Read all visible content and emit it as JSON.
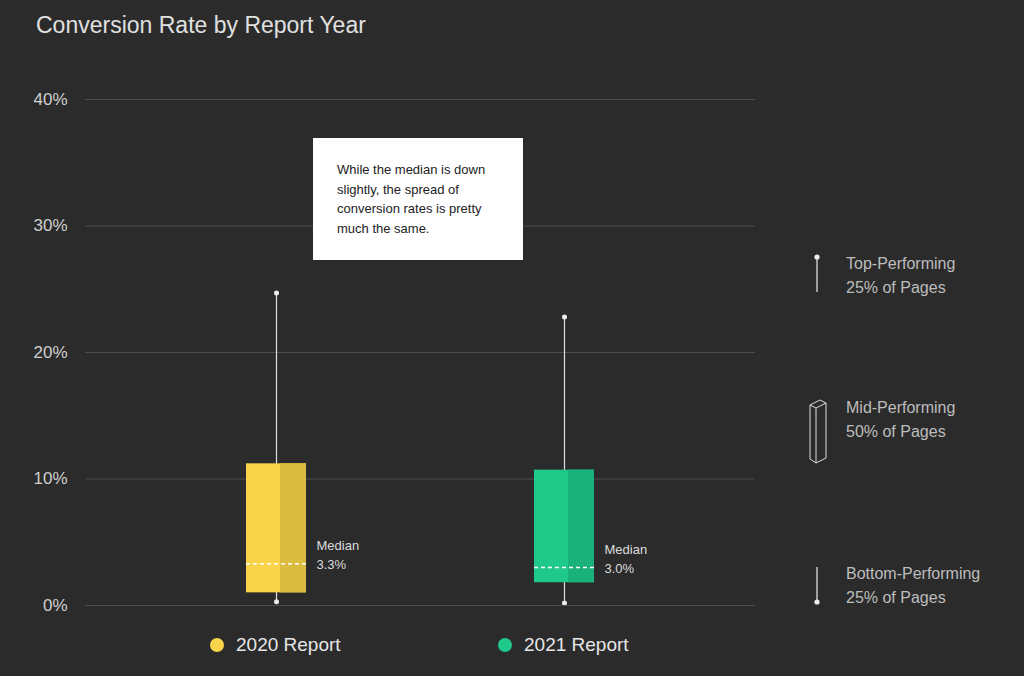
{
  "chart_data": {
    "type": "box",
    "title": "Conversion Rate by Report Year",
    "categories": [
      "2020 Report",
      "2021 Report"
    ],
    "series": [
      {
        "name": "2020 Report",
        "color": "#f9d44a",
        "min": 0.3,
        "q1": 1.0,
        "median": 3.3,
        "q3": 11.2,
        "max": 24.7,
        "median_label": "3.3%"
      },
      {
        "name": "2021 Report",
        "color": "#1ec98a",
        "min": 0.2,
        "q1": 1.8,
        "median": 3.0,
        "q3": 10.7,
        "max": 22.8,
        "median_label": "3.0%"
      }
    ],
    "median_title": "Median",
    "annotation": "While the median is down slightly, the spread of conversion rates is pretty much the same.",
    "key": [
      {
        "text": [
          "Top-Performing",
          "25% of Pages"
        ],
        "marker": "top"
      },
      {
        "text": [
          "Mid-Performing",
          "50% of Pages"
        ],
        "marker": "box"
      },
      {
        "text": [
          "Bottom-Performing",
          "25% of Pages"
        ],
        "marker": "bottom"
      }
    ],
    "ylim": [
      0,
      40
    ],
    "yticks": [
      {
        "value": 0,
        "label": "0%"
      },
      {
        "value": 10,
        "label": "10%"
      },
      {
        "value": 20,
        "label": "20%"
      },
      {
        "value": 30,
        "label": "30%"
      },
      {
        "value": 40,
        "label": "40%"
      }
    ],
    "grid": true,
    "legend": "bottom",
    "tick_labels": "y"
  }
}
